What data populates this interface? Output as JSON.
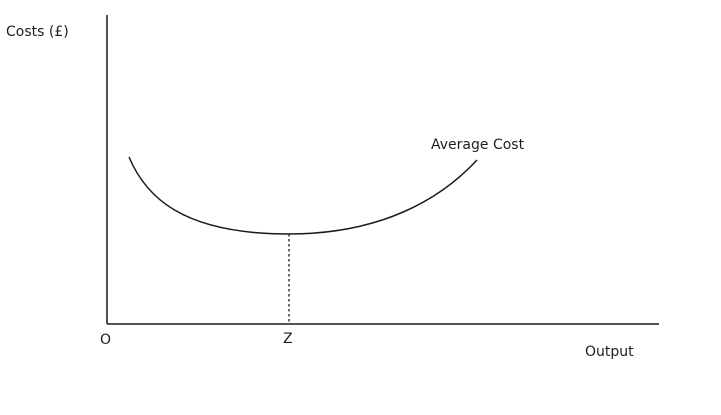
{
  "diagram": {
    "y_axis_label": "Costs (£)",
    "x_axis_label": "Output",
    "origin_label": "O",
    "curve_label": "Average Cost",
    "minimum_point_label": "Z"
  },
  "colors": {
    "line": "#1a1a1a",
    "text": "#1f1f1f",
    "background": "#ffffff"
  }
}
